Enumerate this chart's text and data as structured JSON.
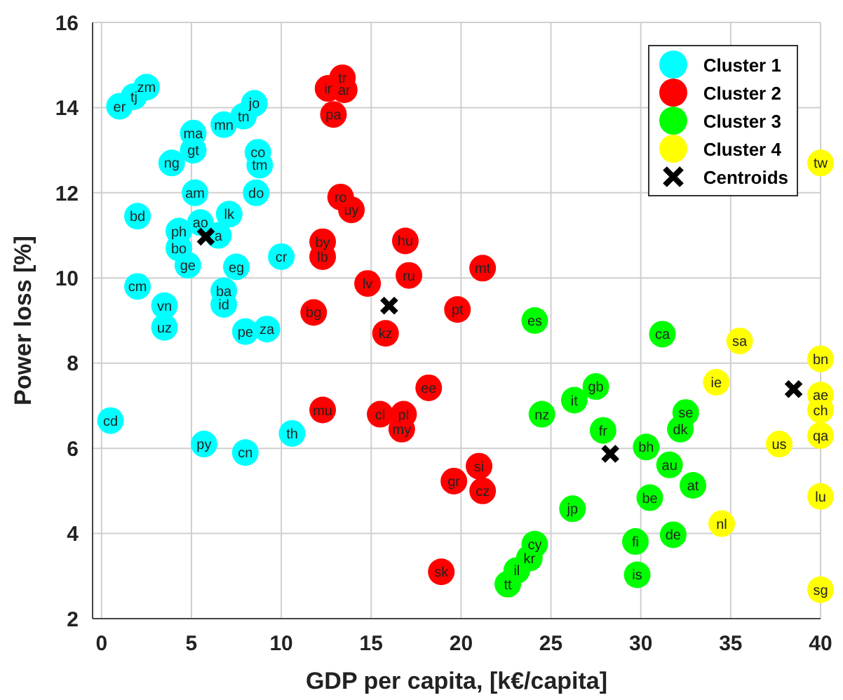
{
  "chart_data": {
    "type": "scatter",
    "xlabel": "GDP per capita, [k€/capita]",
    "ylabel": "Power loss [%]",
    "xlim": [
      -0.5,
      40
    ],
    "ylim": [
      2,
      16
    ],
    "xticks": [
      0,
      5,
      10,
      15,
      20,
      25,
      30,
      35,
      40
    ],
    "yticks": [
      2,
      4,
      6,
      8,
      10,
      12,
      14,
      16
    ],
    "grid": true,
    "legend": "top right",
    "series": [
      {
        "name": "Cluster 1",
        "color": "#00ffff",
        "marker": "circle",
        "x": [
          1.0,
          1.8,
          2.5,
          8.5,
          6.8,
          7.9,
          5.1,
          5.1,
          3.9,
          8.7,
          8.8,
          5.2,
          8.6,
          2.0,
          7.1,
          5.5,
          4.3,
          4.3,
          4.8,
          6.5,
          10.0,
          7.5,
          2.0,
          6.8,
          6.8,
          3.5,
          3.5,
          8.0,
          9.2,
          0.5,
          5.7,
          8.0,
          10.6
        ],
        "values": [
          14.03,
          14.26,
          14.48,
          14.1,
          13.6,
          13.8,
          13.4,
          13.0,
          12.7,
          12.95,
          12.65,
          12.0,
          12.0,
          11.45,
          11.5,
          11.3,
          11.1,
          10.7,
          10.3,
          11.0,
          10.5,
          10.26,
          9.8,
          9.7,
          9.38,
          9.35,
          8.84,
          8.74,
          8.8,
          6.65,
          6.1,
          5.9,
          6.35
        ],
        "value_labels": [
          "er",
          "tj",
          "zm",
          "jo",
          "mn",
          "tn",
          "ma",
          "gt",
          "ng",
          "co",
          "tm",
          "am",
          "do",
          "bd",
          "lk",
          "ao",
          "ph",
          "bo",
          "ge",
          "a",
          "cr",
          "eg",
          "cm",
          "ba",
          "id",
          "vn",
          "uz",
          "pe",
          "za",
          "cd",
          "py",
          "cn",
          "th"
        ]
      },
      {
        "name": "Cluster 2",
        "color": "#ff0000",
        "marker": "circle",
        "x": [
          13.4,
          12.6,
          13.5,
          12.9,
          13.3,
          13.9,
          12.3,
          12.3,
          16.9,
          17.1,
          21.2,
          14.8,
          11.8,
          15.8,
          19.8,
          12.3,
          18.2,
          15.5,
          16.8,
          16.7,
          21.0,
          19.6,
          21.2,
          18.9
        ],
        "values": [
          14.7,
          14.45,
          14.42,
          13.84,
          11.9,
          11.6,
          10.85,
          10.5,
          10.87,
          10.06,
          10.23,
          9.87,
          9.19,
          8.7,
          9.26,
          6.9,
          7.42,
          6.8,
          6.8,
          6.45,
          5.58,
          5.23,
          5.0,
          3.1
        ],
        "value_labels": [
          "tr",
          "ir",
          "ar",
          "pa",
          "ro",
          "uy",
          "by",
          "lb",
          "hu",
          "ru",
          "mt",
          "lv",
          "bg",
          "kz",
          "pt",
          "mu",
          "ee",
          "cl",
          "pl",
          "my",
          "si",
          "gr",
          "cz",
          "sk"
        ]
      },
      {
        "name": "Cluster 3",
        "color": "#00ff00",
        "marker": "circle",
        "x": [
          24.1,
          31.2,
          27.5,
          26.3,
          24.5,
          27.9,
          32.5,
          32.2,
          30.3,
          31.6,
          32.9,
          30.5,
          26.2,
          31.8,
          29.7,
          29.8,
          24.1,
          23.8,
          23.1,
          22.6
        ],
        "values": [
          9.0,
          8.68,
          7.45,
          7.13,
          6.8,
          6.42,
          6.84,
          6.45,
          6.03,
          5.61,
          5.13,
          4.84,
          4.58,
          3.97,
          3.81,
          3.03,
          3.75,
          3.42,
          3.13,
          2.81
        ],
        "value_labels": [
          "es",
          "ca",
          "gb",
          "it",
          "nz",
          "fr",
          "se",
          "dk",
          "bh",
          "au",
          "at",
          "be",
          "jp",
          "de",
          "fi",
          "is",
          "cy",
          "kr",
          "il",
          "tt"
        ]
      },
      {
        "name": "Cluster 4",
        "color": "#ffff00",
        "marker": "circle",
        "x": [
          40,
          35.5,
          34.2,
          40,
          40,
          40,
          40,
          37.7,
          40,
          34.5,
          40
        ],
        "values": [
          12.7,
          8.52,
          7.55,
          8.1,
          7.25,
          6.9,
          6.3,
          6.1,
          4.87,
          4.23,
          2.68
        ],
        "value_labels": [
          "tw",
          "sa",
          "ie",
          "bn",
          "ae",
          "ch",
          "qa",
          "us",
          "lu",
          "nl",
          "sg"
        ]
      },
      {
        "name": "Centroids",
        "color": "#000000",
        "marker": "cross",
        "x": [
          5.8,
          16.0,
          28.3,
          38.5
        ],
        "values": [
          10.97,
          9.35,
          5.87,
          7.39
        ]
      }
    ]
  }
}
